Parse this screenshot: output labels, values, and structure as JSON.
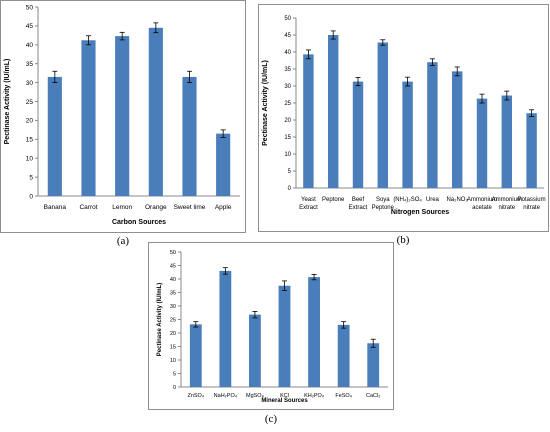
{
  "chart_data": [
    {
      "type": "bar",
      "panel_label": "(a)",
      "xlabel": "Carbon Sources",
      "ylabel": "Pectinase Activity (IU/mL)",
      "ylim": [
        0,
        50
      ],
      "yticks": [
        0,
        5,
        10,
        15,
        20,
        25,
        30,
        35,
        40,
        45,
        50
      ],
      "grid": false,
      "bar_color": "#4a7ebb",
      "categories": [
        [
          "Banana"
        ],
        [
          "Carrot"
        ],
        [
          "Lemon"
        ],
        [
          "Orange"
        ],
        [
          "Sweet lime"
        ],
        [
          "Apple"
        ]
      ],
      "values": [
        31.5,
        41.2,
        42.3,
        44.5,
        31.5,
        16.5
      ],
      "errors": [
        1.5,
        1.2,
        1.0,
        1.3,
        1.5,
        1.0
      ]
    },
    {
      "type": "bar",
      "panel_label": "(b)",
      "xlabel": "Nitrogen Sources",
      "ylabel": "Pectinase Activity (IU/mL)",
      "ylim": [
        0,
        50
      ],
      "yticks": [
        0,
        5,
        10,
        15,
        20,
        25,
        30,
        35,
        40,
        45,
        50
      ],
      "grid": false,
      "bar_color": "#4a7ebb",
      "categories": [
        [
          "Yeast",
          "Extract"
        ],
        [
          "Peptone"
        ],
        [
          "Beef",
          "Extract"
        ],
        [
          "Soya",
          "Peptone"
        ],
        [
          "(NH₄)₂SO₄"
        ],
        [
          "Urea"
        ],
        [
          "Na₂NO₃"
        ],
        [
          "Ammonium",
          "acetate"
        ],
        [
          "Ammonium",
          "nitrate"
        ],
        [
          "Potassium",
          "nitrate"
        ]
      ],
      "values": [
        39.3,
        45.0,
        31.3,
        42.8,
        31.3,
        37.0,
        34.3,
        26.3,
        27.2,
        22.0
      ],
      "errors": [
        1.3,
        1.2,
        1.2,
        0.8,
        1.3,
        1.0,
        1.3,
        1.3,
        1.3,
        1.0
      ]
    },
    {
      "type": "bar",
      "panel_label": "(c)",
      "xlabel": "Mineral Sources",
      "ylabel": "Pectinase Activity (IU/mL)",
      "ylim": [
        0,
        50
      ],
      "yticks": [
        0,
        5,
        10,
        15,
        20,
        25,
        30,
        35,
        40,
        45,
        50
      ],
      "grid": false,
      "bar_color": "#4a7ebb",
      "categories": [
        [
          "ZnSO₄"
        ],
        [
          "NaH₂PO₄"
        ],
        [
          "MgSO₄"
        ],
        [
          "KCl"
        ],
        [
          "KH₂PO₄"
        ],
        [
          "FeSO₄"
        ],
        [
          "CaCl₂"
        ]
      ],
      "values": [
        23.2,
        43.0,
        26.8,
        37.5,
        40.7,
        23.0,
        16.2
      ],
      "errors": [
        1.0,
        1.2,
        1.2,
        1.8,
        1.0,
        1.2,
        1.5
      ]
    }
  ]
}
